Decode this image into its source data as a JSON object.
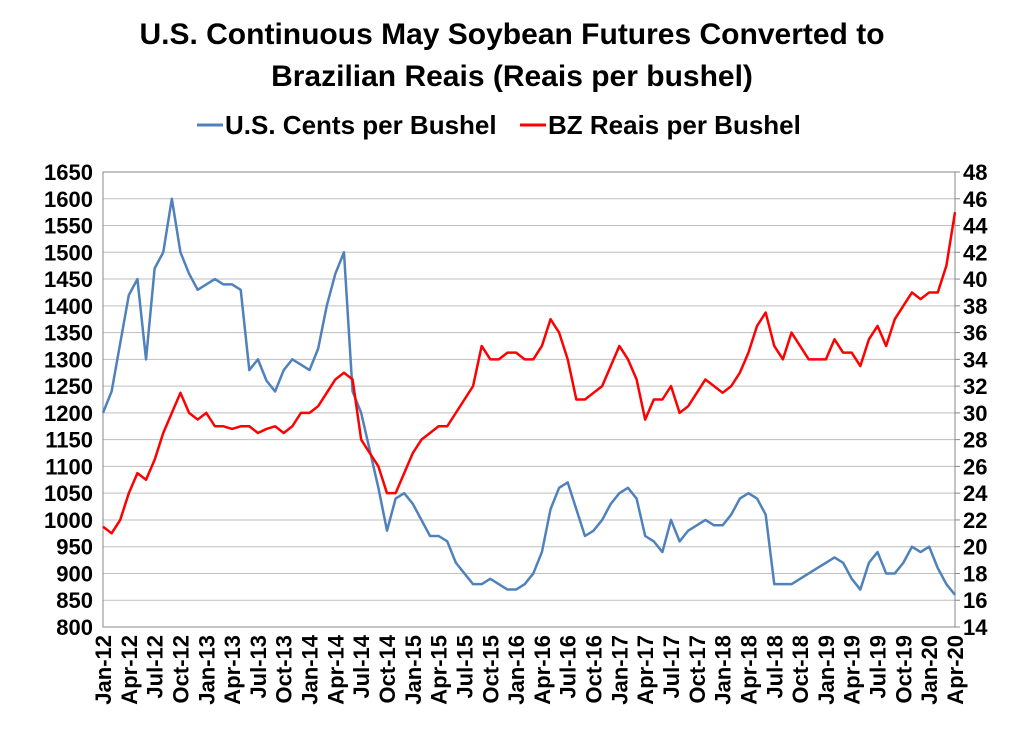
{
  "chart_data": {
    "type": "line",
    "title": [
      "U.S. Continuous May Soybean Futures Converted to",
      "Brazilian Reais (Reais per bushel)"
    ],
    "categories": [
      "Jan-12",
      null,
      null,
      "Apr-12",
      null,
      null,
      "Jul-12",
      null,
      null,
      "Oct-12",
      null,
      null,
      "Jan-13",
      null,
      null,
      "Apr-13",
      null,
      null,
      "Jul-13",
      null,
      null,
      "Oct-13",
      null,
      null,
      "Jan-14",
      null,
      null,
      "Apr-14",
      null,
      null,
      "Jul-14",
      null,
      null,
      "Oct-14",
      null,
      null,
      "Jan-15",
      null,
      null,
      "Apr-15",
      null,
      null,
      "Jul-15",
      null,
      null,
      "Oct-15",
      null,
      null,
      "Jan-16",
      null,
      null,
      "Apr-16",
      null,
      null,
      "Jul-16",
      null,
      null,
      "Oct-16",
      null,
      null,
      "Jan-17",
      null,
      null,
      "Apr-17",
      null,
      null,
      "Jul-17",
      null,
      null,
      "Oct-17",
      null,
      null,
      "Jan-18",
      null,
      null,
      "Apr-18",
      null,
      null,
      "Jul-18",
      null,
      null,
      "Oct-18",
      null,
      null,
      "Jan-19",
      null,
      null,
      "Apr-19",
      null,
      null,
      "Jul-19",
      null,
      null,
      "Oct-19",
      null,
      null,
      "Jan-20",
      null,
      null,
      "Apr-20"
    ],
    "series": [
      {
        "name": "U.S. Cents per Bushel",
        "color": "#4f81bd",
        "axis": "y",
        "values": [
          1200,
          1240,
          1330,
          1420,
          1450,
          1300,
          1470,
          1500,
          1600,
          1500,
          1460,
          1430,
          1440,
          1450,
          1440,
          1440,
          1430,
          1280,
          1300,
          1260,
          1240,
          1280,
          1300,
          1290,
          1280,
          1320,
          1400,
          1460,
          1500,
          1240,
          1200,
          1130,
          1060,
          980,
          1040,
          1050,
          1030,
          1000,
          970,
          970,
          960,
          920,
          900,
          880,
          880,
          890,
          880,
          870,
          870,
          880,
          900,
          940,
          1020,
          1060,
          1070,
          1020,
          970,
          980,
          1000,
          1030,
          1050,
          1060,
          1040,
          970,
          960,
          940,
          1000,
          960,
          980,
          990,
          1000,
          990,
          990,
          1010,
          1040,
          1050,
          1040,
          1010,
          880,
          880,
          880,
          890,
          900,
          910,
          920,
          930,
          920,
          890,
          870,
          920,
          940,
          900,
          900,
          920,
          950,
          940,
          950,
          910,
          880,
          860
        ]
      },
      {
        "name": "BZ Reais per Bushel",
        "color": "#ff0000",
        "axis": "y2",
        "values": [
          21.5,
          21,
          22,
          24,
          25.5,
          25,
          26.5,
          28.5,
          30,
          31.5,
          30,
          29.5,
          30,
          29,
          29,
          28.8,
          29,
          29,
          28.5,
          28.8,
          29,
          28.5,
          29,
          30,
          30,
          30.5,
          31.5,
          32.5,
          33,
          32.5,
          28,
          27,
          26,
          24,
          24,
          25.5,
          27,
          28,
          28.5,
          29,
          29,
          30,
          31,
          32,
          35,
          34,
          34,
          34.5,
          34.5,
          34,
          34,
          35,
          37,
          36,
          34,
          31,
          31,
          31.5,
          32,
          33.5,
          35,
          34,
          32.5,
          29.5,
          31,
          31,
          32,
          30,
          30.5,
          31.5,
          32.5,
          32,
          31.5,
          32,
          33,
          34.5,
          36.5,
          37.5,
          35,
          34,
          36,
          35,
          34,
          34,
          34,
          35.5,
          34.5,
          34.5,
          33.5,
          35.5,
          36.5,
          35,
          37,
          38,
          39,
          38.5,
          39,
          39,
          41,
          45
        ]
      }
    ],
    "ylim": [
      800,
      1650
    ],
    "yticks": [
      800,
      850,
      900,
      950,
      1000,
      1050,
      1100,
      1150,
      1200,
      1250,
      1300,
      1350,
      1400,
      1450,
      1500,
      1550,
      1600,
      1650
    ],
    "y2lim": [
      14,
      48
    ],
    "y2ticks": [
      14,
      16,
      18,
      20,
      22,
      24,
      26,
      28,
      30,
      32,
      34,
      36,
      38,
      40,
      42,
      44,
      46,
      48
    ],
    "grid": true,
    "legend": "top"
  }
}
